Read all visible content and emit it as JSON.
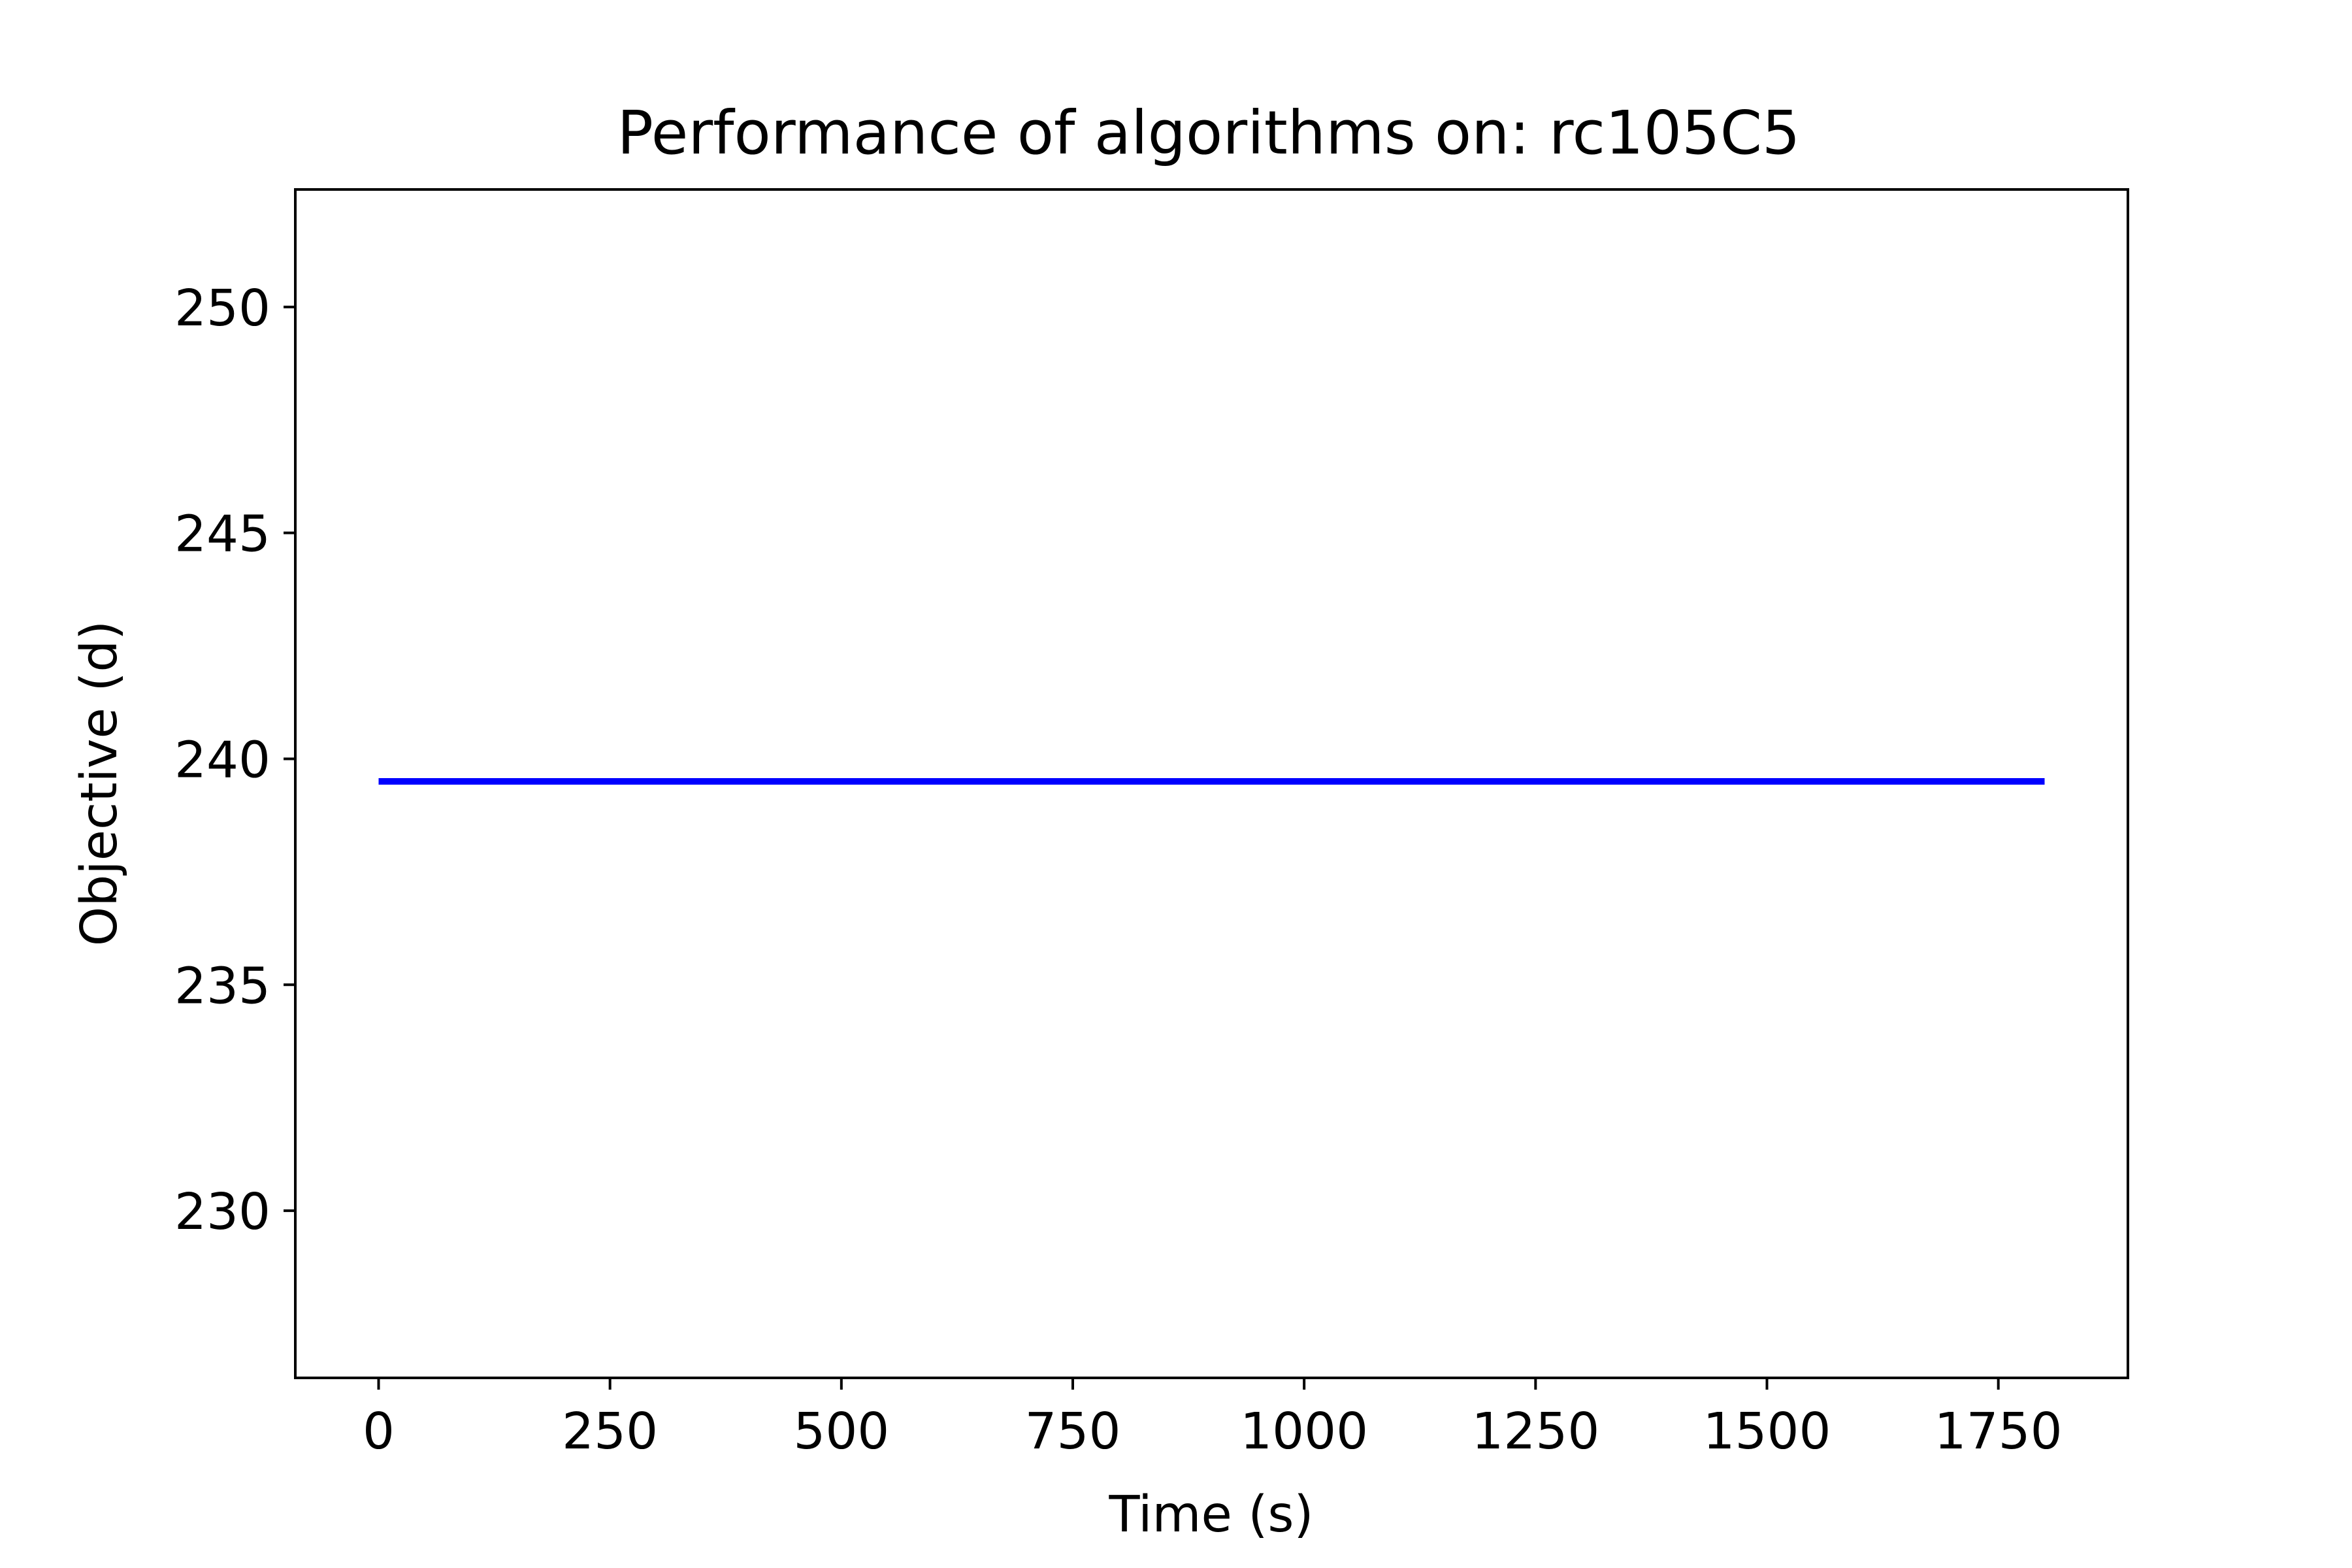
{
  "chart_data": {
    "type": "line",
    "title": "Performance of algorithms on: rc105C5",
    "xlabel": "Time (s)",
    "ylabel": "Objective (d)",
    "xlim": [
      -90,
      1890
    ],
    "ylim": [
      226.3,
      252.6
    ],
    "xticks": [
      0,
      250,
      500,
      750,
      1000,
      1250,
      1500,
      1750
    ],
    "yticks": [
      230,
      235,
      240,
      245,
      250
    ],
    "grid": false,
    "series": [
      {
        "color": "#0000ff",
        "x": [
          0,
          1800
        ],
        "y": [
          239.5,
          239.5
        ]
      }
    ]
  }
}
